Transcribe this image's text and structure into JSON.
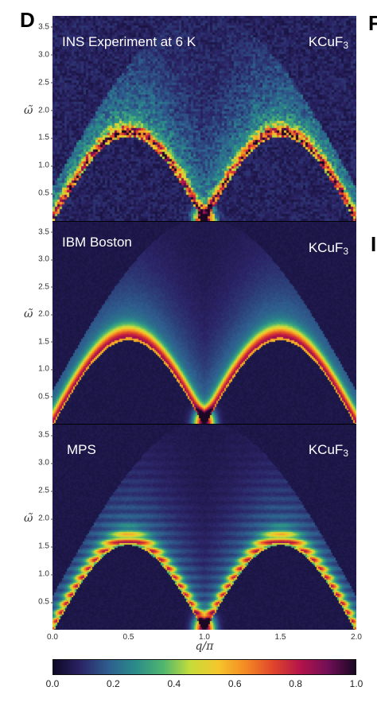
{
  "figure": {
    "panel_letter": "D",
    "right_letters": [
      "F",
      "I"
    ]
  },
  "chart_data": [
    {
      "type": "heatmap",
      "title": "INS Experiment at 6 K",
      "material": "KCuF",
      "material_sub": "3",
      "xlabel": "q/π",
      "ylabel": "ω̃",
      "xlim": [
        0.0,
        2.0
      ],
      "ylim": [
        0.0,
        3.7
      ],
      "y_ticks": [
        "0.5",
        "1.0",
        "1.5",
        "2.0",
        "2.5",
        "3.0",
        "3.5"
      ],
      "dispersion_peak": 1.57,
      "noisy": true
    },
    {
      "type": "heatmap",
      "title": "IBM Boston",
      "material": "KCuF",
      "material_sub": "3",
      "xlabel": "q/π",
      "ylabel": "ω̃",
      "xlim": [
        0.0,
        2.0
      ],
      "ylim": [
        0.0,
        3.7
      ],
      "y_ticks": [
        "0.5",
        "1.0",
        "1.5",
        "2.0",
        "2.5",
        "3.0",
        "3.5"
      ],
      "dispersion_peak": 1.57,
      "noisy": false
    },
    {
      "type": "heatmap",
      "title": "MPS",
      "material": "KCuF",
      "material_sub": "3",
      "xlabel": "q/π",
      "ylabel": "ω̃",
      "xlim": [
        0.0,
        2.0
      ],
      "ylim": [
        0.0,
        3.7
      ],
      "y_ticks": [
        "0.5",
        "1.0",
        "1.5",
        "2.0",
        "2.5",
        "3.0",
        "3.5"
      ],
      "x_ticks": [
        "0.0",
        "0.5",
        "1.0",
        "1.5",
        "2.0"
      ],
      "dispersion_peak": 1.57,
      "noisy": false
    }
  ],
  "x_axis": {
    "label": "q/π",
    "ticks": [
      "0.0",
      "0.5",
      "1.0",
      "1.5",
      "2.0"
    ]
  },
  "colorbar": {
    "range": [
      0.0,
      1.0
    ],
    "ticks": [
      "0.0",
      "0.2",
      "0.4",
      "0.6",
      "0.8",
      "1.0"
    ],
    "colormap": [
      "#0d0826",
      "#2b2466",
      "#2e5d8e",
      "#2a8c8a",
      "#4fb66f",
      "#c6dd3a",
      "#f5c62c",
      "#f48a24",
      "#e0452a",
      "#b3134a",
      "#700f56",
      "#1a0724"
    ]
  }
}
